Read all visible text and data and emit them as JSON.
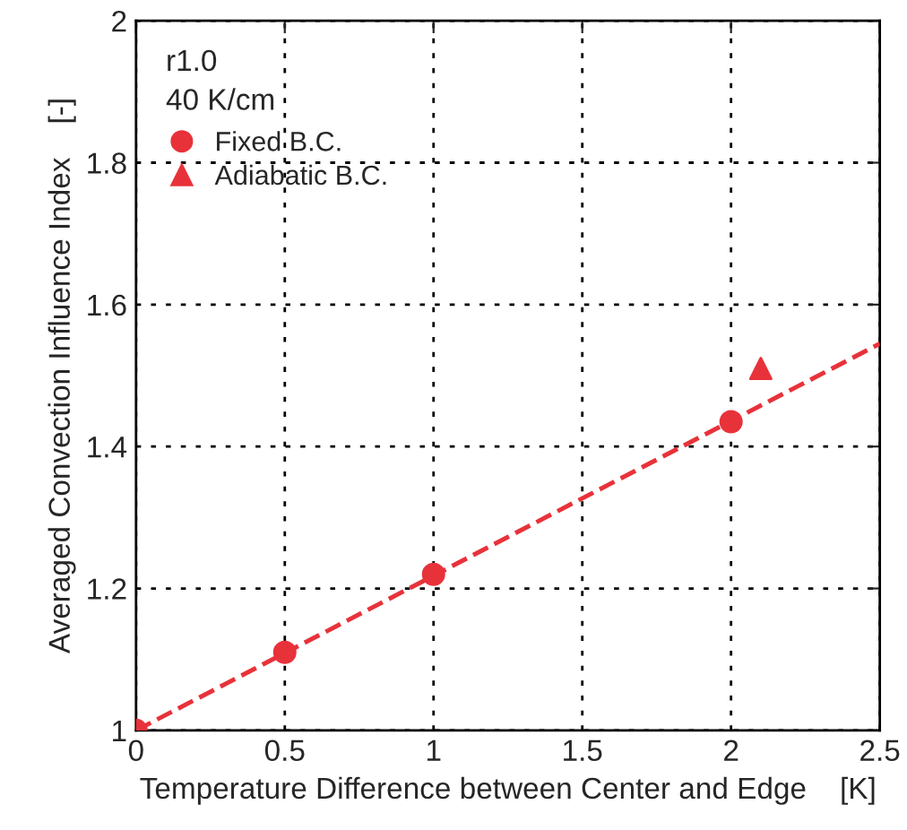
{
  "chart_data": {
    "type": "scatter",
    "xlabel": "Temperature Difference between Center and Edge    [K]",
    "ylabel": "Averaged Convection Influence Index    [-]",
    "annotations": [
      "r1.0",
      "40 K/cm"
    ],
    "series": [
      {
        "name": "Fixed B.C.",
        "marker": "circle",
        "color": "#e8323a",
        "x": [
          0,
          0.5,
          1,
          2
        ],
        "values": [
          1.0,
          1.11,
          1.22,
          1.435
        ]
      },
      {
        "name": "Adiabatic B.C.",
        "marker": "triangle",
        "color": "#e8323a",
        "x": [
          2.1
        ],
        "values": [
          1.51
        ]
      },
      {
        "type": "line",
        "line_style": "dashed",
        "color": "#e8323a",
        "x": [
          0,
          2.5
        ],
        "values": [
          1.0,
          1.545
        ]
      }
    ],
    "xlim": [
      0,
      2.5
    ],
    "xticks": [
      0,
      0.5,
      1,
      1.5,
      2,
      2.5
    ],
    "ylim": [
      1,
      2
    ],
    "yticks": [
      1,
      1.2,
      1.4,
      1.6,
      1.8,
      2
    ],
    "grid": true,
    "legend": "top left"
  }
}
